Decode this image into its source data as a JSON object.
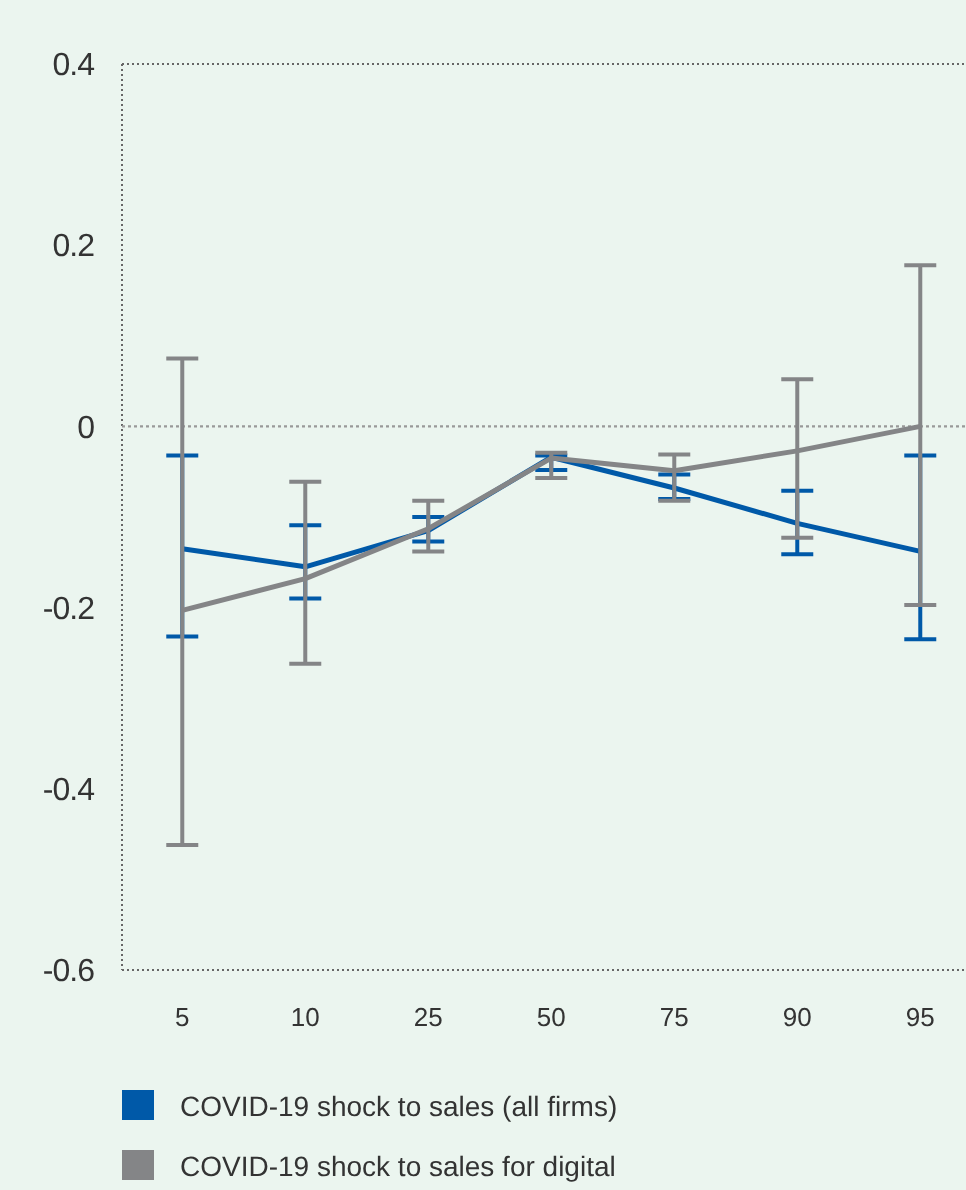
{
  "chart_data": {
    "type": "line",
    "categories": [
      "5",
      "10",
      "25",
      "50",
      "75",
      "90",
      "95"
    ],
    "series": [
      {
        "name": "COVID-19 shock to sales (all firms)",
        "color": "#0059a8",
        "values": [
          -0.135,
          -0.155,
          -0.115,
          -0.034,
          -0.068,
          -0.107,
          -0.138
        ],
        "errors": [
          [
            -0.232,
            -0.032
          ],
          [
            -0.19,
            -0.109
          ],
          [
            -0.127,
            -0.1
          ],
          [
            -0.048,
            -0.032
          ],
          [
            -0.08,
            -0.053
          ],
          [
            -0.141,
            -0.071
          ],
          [
            -0.235,
            -0.032
          ]
        ]
      },
      {
        "name": "COVID-19 shock to sales for digital",
        "color": "#848587",
        "values": [
          -0.203,
          -0.168,
          -0.113,
          -0.035,
          -0.049,
          -0.027,
          0
        ],
        "errors": [
          [
            -0.462,
            0.075
          ],
          [
            -0.262,
            -0.061
          ],
          [
            -0.138,
            -0.082
          ],
          [
            -0.057,
            -0.029
          ],
          [
            -0.082,
            -0.031
          ],
          [
            -0.123,
            0.052
          ],
          [
            -0.197,
            0.178
          ]
        ]
      }
    ],
    "ylim": [
      -0.6,
      0.4
    ],
    "yticks": [
      {
        "value": 0.4,
        "label": "0.4"
      },
      {
        "value": 0.2,
        "label": "0.2"
      },
      0,
      {
        "value": -0.2,
        "label": "-0.2"
      },
      {
        "value": -0.4,
        "label": "-0.4"
      },
      {
        "value": -0.6,
        "label": "-0.6"
      }
    ],
    "ref_lines": [
      {
        "axis": "y",
        "value": 0,
        "color": "#999999",
        "line_style": "dotted"
      }
    ],
    "grid": false,
    "legend": "bottom",
    "marker": "none",
    "line_style": "solid"
  }
}
